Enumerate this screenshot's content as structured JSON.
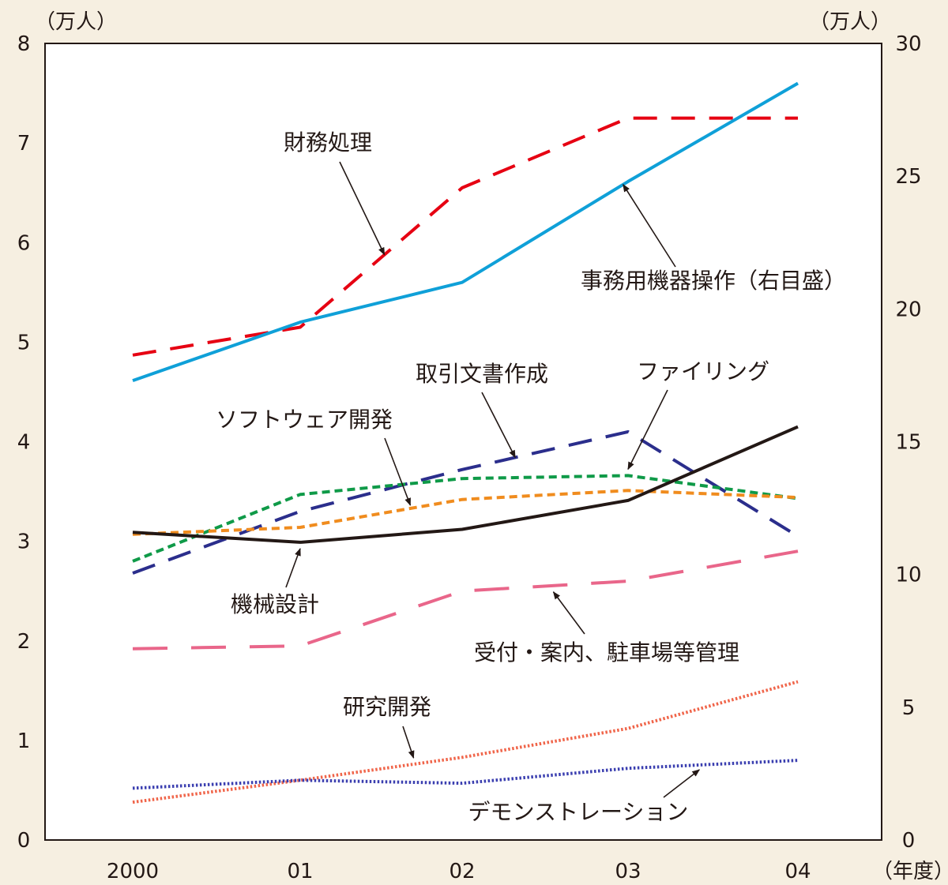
{
  "chart_data": {
    "type": "line",
    "left_axis": {
      "unit": "（万人）",
      "ylim": [
        0,
        8
      ],
      "ticks": [
        "0",
        "1",
        "2",
        "3",
        "4",
        "5",
        "6",
        "7",
        "8"
      ]
    },
    "right_axis": {
      "unit": "（万人）",
      "ylim": [
        0,
        30
      ],
      "ticks": [
        "0",
        "5",
        "10",
        "15",
        "20",
        "25",
        "30"
      ]
    },
    "x_axis": {
      "unit": "（年度）",
      "categories": [
        "2000",
        "01",
        "02",
        "03",
        "04"
      ]
    },
    "grid": false,
    "legend": "none",
    "series": [
      {
        "name": "財務処理",
        "axis": "left",
        "color": "#e60012",
        "style": "dash-long",
        "values": [
          4.87,
          5.15,
          6.55,
          7.25,
          7.25
        ]
      },
      {
        "name": "事務用機器操作（右目盛）",
        "axis": "right",
        "color": "#0fa0d8",
        "style": "solid",
        "values": [
          17.3,
          19.5,
          21.0,
          24.8,
          28.5
        ]
      },
      {
        "name": "取引文書作成",
        "axis": "left",
        "color": "#2b2e8c",
        "style": "dash-long",
        "values": [
          2.68,
          3.3,
          3.72,
          4.1,
          3.05
        ]
      },
      {
        "name": "ファイリング",
        "axis": "left",
        "color": "#0f9a48",
        "style": "dash-short",
        "values": [
          2.8,
          3.47,
          3.63,
          3.66,
          3.43
        ]
      },
      {
        "name": "ソフトウェア開発",
        "axis": "left",
        "color": "#f08c1e",
        "style": "dash-short",
        "values": [
          3.07,
          3.14,
          3.42,
          3.51,
          3.44
        ]
      },
      {
        "name": "機械設計",
        "axis": "left",
        "color": "#231815",
        "style": "solid",
        "values": [
          3.09,
          2.99,
          3.12,
          3.41,
          4.15
        ]
      },
      {
        "name": "受付・案内、駐車場等管理",
        "axis": "left",
        "color": "#e9668a",
        "style": "dash-xlong",
        "values": [
          1.92,
          1.95,
          2.5,
          2.6,
          2.9
        ]
      },
      {
        "name": "研究開発",
        "axis": "left",
        "color": "#f0654a",
        "style": "dot",
        "values": [
          0.38,
          0.6,
          0.83,
          1.12,
          1.59
        ]
      },
      {
        "name": "デモンストレーション",
        "axis": "left",
        "color": "#3b3fb0",
        "style": "dot",
        "values": [
          0.52,
          0.6,
          0.57,
          0.72,
          0.8
        ]
      }
    ]
  },
  "annotations": [
    {
      "series": "財務処理",
      "text": "財務処理"
    },
    {
      "series": "事務用機器操作（右目盛）",
      "text": "事務用機器操作（右目盛）"
    },
    {
      "series": "取引文書作成",
      "text": "取引文書作成"
    },
    {
      "series": "ファイリング",
      "text": "ファイリング"
    },
    {
      "series": "ソフトウェア開発",
      "text": "ソフトウェア開発"
    },
    {
      "series": "機械設計",
      "text": "機械設計"
    },
    {
      "series": "受付・案内、駐車場等管理",
      "text": "受付・案内、駐車場等管理"
    },
    {
      "series": "研究開発",
      "text": "研究開発"
    },
    {
      "series": "デモンストレーション",
      "text": "デモンストレーション"
    }
  ]
}
